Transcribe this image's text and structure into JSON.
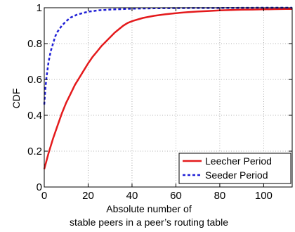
{
  "chart_data": {
    "type": "line",
    "title": "",
    "xlabel_lines": [
      "Absolute number of",
      "stable peers in a peer’s routing table"
    ],
    "ylabel": "CDF",
    "xlim": [
      0,
      113
    ],
    "ylim": [
      0,
      1
    ],
    "xticks": [
      0,
      20,
      40,
      60,
      80,
      100
    ],
    "yticks": [
      0,
      0.2,
      0.4,
      0.6,
      0.8,
      1
    ],
    "ytick_labels": [
      "0",
      "0.2",
      "0.4",
      "0.6",
      "0.8",
      "1"
    ],
    "grid": true,
    "legend_position": "bottom-right",
    "series": [
      {
        "name": "Leecher Period",
        "color": "#e41a1c",
        "style": "solid",
        "x": [
          0,
          2,
          4,
          6,
          8,
          10,
          12,
          14,
          16,
          18,
          20,
          22,
          24,
          26,
          28,
          30,
          32,
          34,
          36,
          38,
          40,
          45,
          50,
          55,
          60,
          65,
          70,
          75,
          80,
          85,
          90,
          95,
          100,
          105,
          110,
          113
        ],
        "y": [
          0.1,
          0.19,
          0.27,
          0.34,
          0.41,
          0.47,
          0.52,
          0.57,
          0.61,
          0.65,
          0.69,
          0.725,
          0.755,
          0.785,
          0.81,
          0.835,
          0.86,
          0.88,
          0.9,
          0.915,
          0.925,
          0.943,
          0.955,
          0.963,
          0.97,
          0.975,
          0.979,
          0.982,
          0.985,
          0.987,
          0.989,
          0.99,
          0.991,
          0.992,
          0.993,
          0.993
        ]
      },
      {
        "name": "Seeder Period",
        "color": "#1f1fd6",
        "style": "dashed",
        "x": [
          0,
          0.5,
          1,
          2,
          3,
          4,
          5,
          6,
          8,
          10,
          12,
          15,
          20,
          25,
          30,
          40,
          50,
          60,
          80,
          100,
          113
        ],
        "y": [
          0.46,
          0.55,
          0.61,
          0.7,
          0.76,
          0.8,
          0.84,
          0.865,
          0.9,
          0.925,
          0.945,
          0.962,
          0.978,
          0.986,
          0.99,
          0.995,
          0.997,
          0.998,
          0.999,
          1.0,
          1.0
        ]
      }
    ]
  }
}
